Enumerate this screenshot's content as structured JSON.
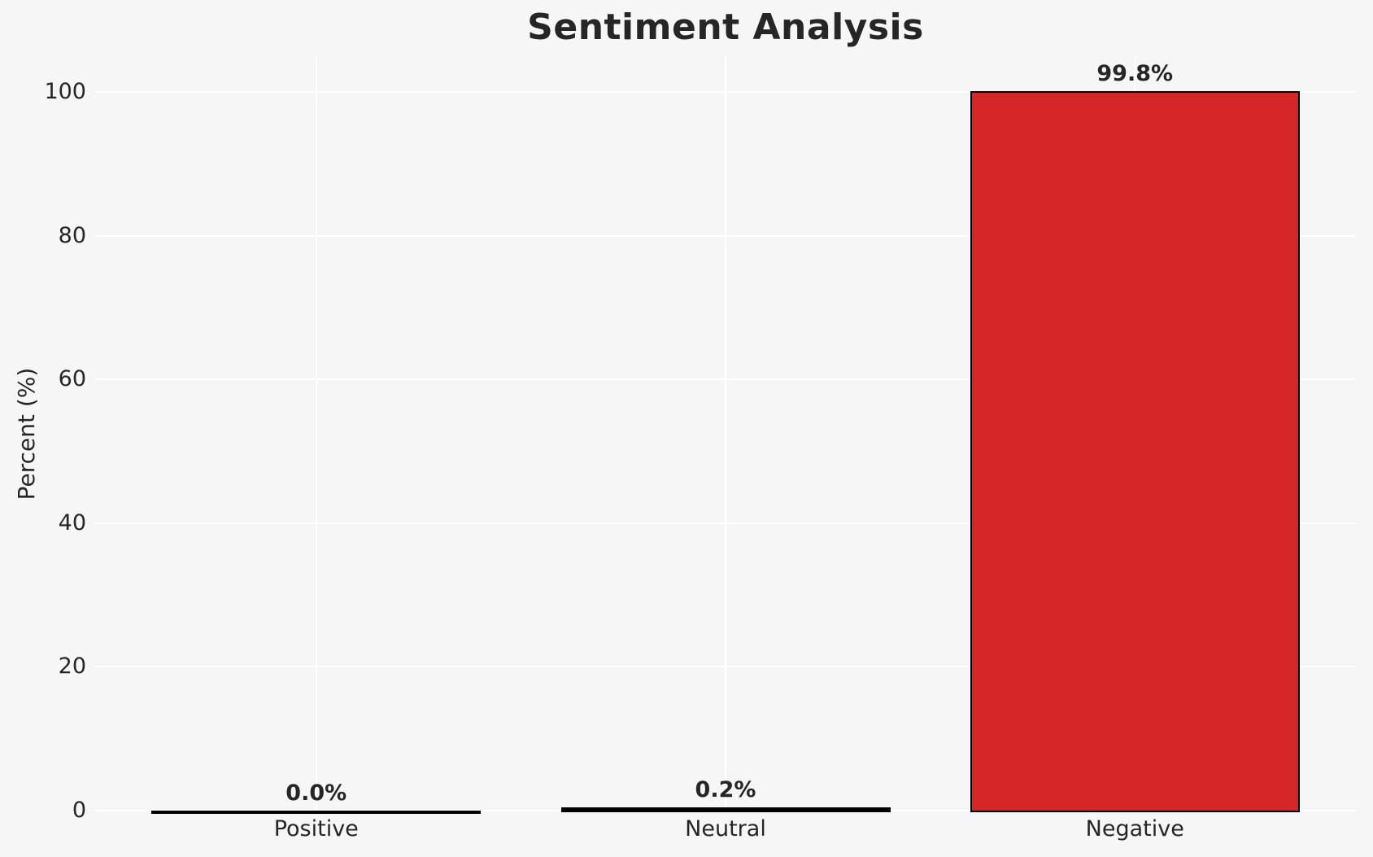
{
  "chart_data": {
    "type": "bar",
    "title": "Sentiment Analysis",
    "ylabel": "Percent (%)",
    "xlabel": "",
    "categories": [
      "Positive",
      "Neutral",
      "Negative"
    ],
    "values": [
      0.0,
      0.2,
      99.8
    ],
    "value_labels": [
      "0.0%",
      "0.2%",
      "99.8%"
    ],
    "yticks": [
      0,
      20,
      40,
      60,
      80,
      100
    ],
    "ylim": [
      0,
      105
    ],
    "grid": true,
    "legend": "none",
    "bar_colors": [
      "#000000",
      "#000000",
      "#d62728"
    ],
    "bar_edge_color": "#000000"
  },
  "colors": {
    "background": "#f6f6f7",
    "gridline": "#ffffff",
    "text": "#262626",
    "negative_bar": "#d62728"
  }
}
